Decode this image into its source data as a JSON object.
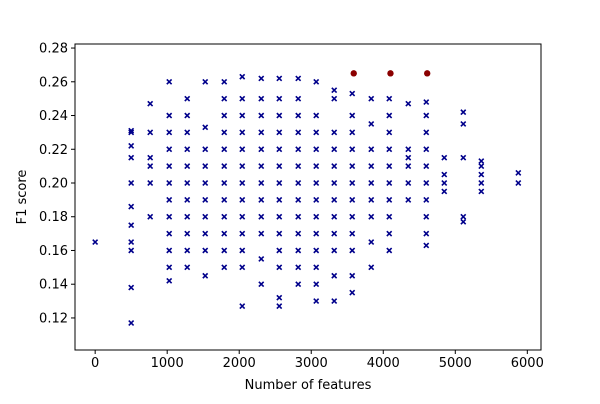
{
  "chart_data": {
    "type": "scatter",
    "x_label": "Number of features",
    "y_label": "F1 score",
    "xlim": [
      -280,
      6190
    ],
    "ylim": [
      0.101,
      0.2824
    ],
    "xticks": [
      0,
      1000,
      2000,
      3000,
      4000,
      5000,
      6000
    ],
    "yticks": [
      0.12,
      0.14,
      0.16,
      0.18,
      {
        "value": 0.2,
        "label": "0.20"
      },
      0.22,
      0.24,
      0.26,
      0.28
    ],
    "series": [
      {
        "color": "#00008b",
        "marker": "x",
        "x": [
          0,
          500,
          500,
          500,
          500,
          500,
          500,
          500,
          500,
          500,
          500,
          500,
          764,
          764,
          764,
          764,
          764,
          764,
          1028,
          1028,
          1028,
          1028,
          1028,
          1028,
          1028,
          1028,
          1028,
          1028,
          1028,
          1028,
          1278,
          1278,
          1278,
          1278,
          1278,
          1278,
          1278,
          1278,
          1278,
          1278,
          1278,
          1528,
          1528,
          1528,
          1528,
          1528,
          1528,
          1528,
          1528,
          1528,
          1528,
          1792,
          1792,
          1792,
          1792,
          1792,
          1792,
          1792,
          1792,
          1792,
          1792,
          1792,
          1792,
          2042,
          2042,
          2042,
          2042,
          2042,
          2042,
          2042,
          2042,
          2042,
          2042,
          2042,
          2042,
          2042,
          2306,
          2306,
          2306,
          2306,
          2306,
          2306,
          2306,
          2306,
          2306,
          2306,
          2306,
          2306,
          2556,
          2556,
          2556,
          2556,
          2556,
          2556,
          2556,
          2556,
          2556,
          2556,
          2556,
          2556,
          2556,
          2556,
          2819,
          2819,
          2819,
          2819,
          2819,
          2819,
          2819,
          2819,
          2819,
          2819,
          2819,
          2819,
          2819,
          3069,
          3069,
          3069,
          3069,
          3069,
          3069,
          3069,
          3069,
          3069,
          3069,
          3069,
          3069,
          3069,
          3319,
          3319,
          3319,
          3319,
          3319,
          3319,
          3319,
          3319,
          3319,
          3319,
          3319,
          3319,
          3569,
          3569,
          3569,
          3569,
          3569,
          3569,
          3569,
          3569,
          3569,
          3569,
          3569,
          3569,
          3833,
          3833,
          3833,
          3833,
          3833,
          3833,
          3833,
          3833,
          3833,
          4083,
          4083,
          4083,
          4083,
          4083,
          4083,
          4083,
          4083,
          4083,
          4083,
          4347,
          4347,
          4347,
          4347,
          4347,
          4347,
          4597,
          4597,
          4597,
          4597,
          4597,
          4597,
          4597,
          4597,
          4597,
          4597,
          4847,
          4847,
          4847,
          4847,
          5111,
          5111,
          5111,
          5111,
          5111,
          5361,
          5361,
          5361,
          5361,
          5361,
          5875,
          5875
        ],
        "values": [
          0.165,
          0.117,
          0.138,
          0.16,
          0.165,
          0.175,
          0.186,
          0.2,
          0.215,
          0.222,
          0.23,
          0.231,
          0.18,
          0.2,
          0.21,
          0.215,
          0.23,
          0.247,
          0.142,
          0.15,
          0.16,
          0.17,
          0.18,
          0.19,
          0.2,
          0.21,
          0.22,
          0.23,
          0.24,
          0.26,
          0.15,
          0.16,
          0.17,
          0.18,
          0.19,
          0.2,
          0.21,
          0.22,
          0.23,
          0.24,
          0.25,
          0.145,
          0.16,
          0.17,
          0.18,
          0.19,
          0.2,
          0.21,
          0.22,
          0.233,
          0.26,
          0.15,
          0.16,
          0.17,
          0.18,
          0.19,
          0.2,
          0.21,
          0.22,
          0.23,
          0.24,
          0.25,
          0.26,
          0.127,
          0.15,
          0.16,
          0.17,
          0.18,
          0.19,
          0.2,
          0.21,
          0.22,
          0.23,
          0.24,
          0.25,
          0.263,
          0.14,
          0.155,
          0.17,
          0.18,
          0.19,
          0.2,
          0.21,
          0.22,
          0.23,
          0.24,
          0.25,
          0.262,
          0.127,
          0.132,
          0.15,
          0.16,
          0.17,
          0.18,
          0.19,
          0.2,
          0.21,
          0.22,
          0.23,
          0.24,
          0.25,
          0.262,
          0.14,
          0.15,
          0.16,
          0.17,
          0.18,
          0.19,
          0.2,
          0.21,
          0.22,
          0.23,
          0.24,
          0.25,
          0.262,
          0.13,
          0.14,
          0.15,
          0.16,
          0.17,
          0.18,
          0.19,
          0.2,
          0.21,
          0.22,
          0.23,
          0.24,
          0.26,
          0.13,
          0.145,
          0.16,
          0.17,
          0.18,
          0.19,
          0.2,
          0.21,
          0.22,
          0.23,
          0.25,
          0.255,
          0.135,
          0.145,
          0.16,
          0.17,
          0.18,
          0.19,
          0.2,
          0.21,
          0.22,
          0.23,
          0.24,
          0.253,
          0.15,
          0.165,
          0.18,
          0.19,
          0.2,
          0.21,
          0.22,
          0.235,
          0.25,
          0.16,
          0.17,
          0.18,
          0.19,
          0.2,
          0.21,
          0.22,
          0.23,
          0.24,
          0.25,
          0.19,
          0.2,
          0.21,
          0.215,
          0.22,
          0.247,
          0.163,
          0.17,
          0.18,
          0.19,
          0.2,
          0.21,
          0.22,
          0.23,
          0.24,
          0.248,
          0.195,
          0.2,
          0.205,
          0.215,
          0.177,
          0.18,
          0.215,
          0.235,
          0.242,
          0.195,
          0.2,
          0.205,
          0.21,
          0.213,
          0.2,
          0.206
        ]
      },
      {
        "color": "#8b0000",
        "marker": "o",
        "x": [
          3590,
          4100,
          4610
        ],
        "values": [
          0.265,
          0.265,
          0.265
        ]
      }
    ]
  }
}
